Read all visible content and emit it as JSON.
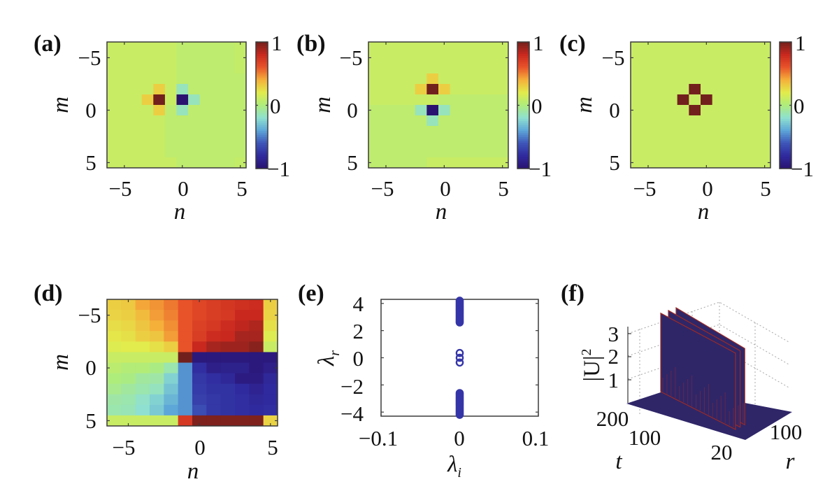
{
  "colors": {
    "colormap_stops": [
      "#2a1370",
      "#2f2a9e",
      "#3e55b8",
      "#5da6d8",
      "#8fe0d0",
      "#aeec7c",
      "#e2ec4c",
      "#f5b03a",
      "#e8532a",
      "#c8281e",
      "#72201d"
    ],
    "marker": "#3535a8",
    "surface": "#2f2668",
    "surface_edge": "#9a2a26"
  },
  "chart_data": [
    {
      "id": "a",
      "panel_label": "(a)",
      "type": "heatmap",
      "xlabel": "n",
      "ylabel": "m",
      "x": [
        -6,
        -5,
        -4,
        -3,
        -2,
        -1,
        0,
        1,
        2,
        3,
        4,
        5
      ],
      "y": [
        -6,
        -5,
        -4,
        -3,
        -2,
        -1,
        0,
        1,
        2,
        3,
        4,
        5
      ],
      "xticks": [
        "−5",
        "0",
        "5"
      ],
      "yticks": [
        "−5",
        "0",
        "5"
      ],
      "xtick_values": [
        -5,
        0,
        5
      ],
      "ytick_values": [
        -5,
        0,
        5
      ],
      "clim": [
        -1,
        1
      ],
      "colorbar_ticks": [
        "1",
        "0",
        "−1"
      ],
      "colorbar_tick_values": [
        1,
        0,
        -1
      ],
      "values": [
        [
          0.1,
          0.1,
          0.1,
          0.1,
          0.1,
          0.1,
          0.06,
          0.06,
          0.06,
          0.06,
          0.06,
          0.08
        ],
        [
          0.1,
          0.1,
          0.1,
          0.1,
          0.1,
          0.1,
          0.06,
          0.06,
          0.06,
          0.06,
          0.06,
          0.08
        ],
        [
          0.1,
          0.1,
          0.1,
          0.1,
          0.1,
          0.1,
          0.06,
          0.06,
          0.06,
          0.06,
          0.06,
          0.08
        ],
        [
          0.1,
          0.1,
          0.1,
          0.1,
          0.1,
          0.1,
          0.06,
          0.06,
          0.06,
          0.06,
          0.06,
          0.06
        ],
        [
          0.1,
          0.1,
          0.1,
          0.1,
          0.3,
          0.1,
          -0.15,
          0.06,
          0.06,
          0.06,
          0.06,
          0.06
        ],
        [
          0.1,
          0.1,
          0.1,
          0.3,
          1.0,
          0.1,
          -1.0,
          -0.15,
          0.06,
          0.06,
          0.06,
          0.06
        ],
        [
          0.1,
          0.1,
          0.1,
          0.1,
          0.3,
          0.06,
          -0.15,
          0.06,
          0.06,
          0.06,
          0.06,
          0.06
        ],
        [
          0.1,
          0.1,
          0.1,
          0.1,
          0.1,
          0.06,
          0.06,
          0.06,
          0.06,
          0.06,
          0.06,
          0.06
        ],
        [
          0.1,
          0.1,
          0.1,
          0.1,
          0.1,
          0.06,
          0.06,
          0.06,
          0.06,
          0.06,
          0.06,
          0.06
        ],
        [
          0.1,
          0.1,
          0.1,
          0.1,
          0.1,
          0.06,
          0.06,
          0.06,
          0.06,
          0.06,
          0.06,
          0.06
        ],
        [
          0.1,
          0.1,
          0.1,
          0.1,
          0.1,
          0.06,
          0.06,
          0.06,
          0.06,
          0.06,
          0.06,
          0.06
        ],
        [
          0.1,
          0.1,
          0.1,
          0.1,
          0.1,
          0.1,
          0.06,
          0.06,
          0.06,
          0.06,
          0.06,
          0.08
        ]
      ]
    },
    {
      "id": "b",
      "panel_label": "(b)",
      "type": "heatmap",
      "xlabel": "n",
      "ylabel": "m",
      "x": [
        -6,
        -5,
        -4,
        -3,
        -2,
        -1,
        0,
        1,
        2,
        3,
        4,
        5
      ],
      "y": [
        -6,
        -5,
        -4,
        -3,
        -2,
        -1,
        0,
        1,
        2,
        3,
        4,
        5
      ],
      "xticks": [
        "−5",
        "0",
        "5"
      ],
      "yticks": [
        "−5",
        "0",
        "5"
      ],
      "xtick_values": [
        -5,
        0,
        5
      ],
      "ytick_values": [
        -5,
        0,
        5
      ],
      "clim": [
        -1,
        1
      ],
      "colorbar_ticks": [
        "1",
        "0",
        "−1"
      ],
      "colorbar_tick_values": [
        1,
        0,
        -1
      ],
      "values": [
        [
          0.1,
          0.1,
          0.1,
          0.1,
          0.1,
          0.1,
          0.1,
          0.1,
          0.1,
          0.1,
          0.1,
          0.1
        ],
        [
          0.1,
          0.1,
          0.1,
          0.1,
          0.1,
          0.1,
          0.1,
          0.1,
          0.1,
          0.1,
          0.1,
          0.1
        ],
        [
          0.1,
          0.1,
          0.1,
          0.1,
          0.1,
          0.1,
          0.1,
          0.1,
          0.1,
          0.1,
          0.1,
          0.1
        ],
        [
          0.1,
          0.1,
          0.1,
          0.1,
          0.1,
          0.3,
          0.1,
          0.1,
          0.1,
          0.1,
          0.1,
          0.1
        ],
        [
          0.1,
          0.1,
          0.1,
          0.1,
          0.3,
          1.0,
          0.3,
          0.1,
          0.1,
          0.1,
          0.1,
          0.1
        ],
        [
          0.1,
          0.1,
          0.1,
          0.1,
          0.1,
          0.1,
          0.06,
          0.06,
          0.06,
          0.06,
          0.06,
          0.06
        ],
        [
          0.06,
          0.06,
          0.06,
          0.06,
          -0.15,
          -1.0,
          -0.15,
          0.06,
          0.06,
          0.06,
          0.06,
          0.06
        ],
        [
          0.06,
          0.06,
          0.06,
          0.06,
          0.06,
          -0.15,
          0.06,
          0.06,
          0.06,
          0.06,
          0.06,
          0.06
        ],
        [
          0.06,
          0.06,
          0.06,
          0.06,
          0.06,
          0.06,
          0.06,
          0.06,
          0.06,
          0.06,
          0.06,
          0.06
        ],
        [
          0.06,
          0.06,
          0.06,
          0.06,
          0.06,
          0.06,
          0.06,
          0.06,
          0.06,
          0.06,
          0.06,
          0.06
        ],
        [
          0.06,
          0.06,
          0.06,
          0.06,
          0.06,
          0.06,
          0.06,
          0.06,
          0.06,
          0.06,
          0.06,
          0.06
        ],
        [
          0.06,
          0.06,
          0.06,
          0.06,
          0.06,
          0.1,
          0.1,
          0.1,
          0.1,
          0.1,
          0.1,
          0.1
        ]
      ]
    },
    {
      "id": "c",
      "panel_label": "(c)",
      "type": "heatmap",
      "xlabel": "n",
      "ylabel": "m",
      "x": [
        -6,
        -5,
        -4,
        -3,
        -2,
        -1,
        0,
        1,
        2,
        3,
        4,
        5
      ],
      "y": [
        -6,
        -5,
        -4,
        -3,
        -2,
        -1,
        0,
        1,
        2,
        3,
        4,
        5
      ],
      "xticks": [
        "−5",
        "0",
        "5"
      ],
      "yticks": [
        "−5",
        "0",
        "5"
      ],
      "xtick_values": [
        -5,
        0,
        5
      ],
      "ytick_values": [
        -5,
        0,
        5
      ],
      "clim": [
        -1,
        1
      ],
      "colorbar_ticks": [
        "1",
        "0",
        "−1"
      ],
      "colorbar_tick_values": [
        1,
        0,
        -1
      ],
      "values": [
        [
          0.1,
          0.1,
          0.1,
          0.1,
          0.1,
          0.1,
          0.1,
          0.1,
          0.1,
          0.1,
          0.1,
          0.1
        ],
        [
          0.1,
          0.1,
          0.1,
          0.1,
          0.1,
          0.1,
          0.1,
          0.1,
          0.1,
          0.1,
          0.1,
          0.1
        ],
        [
          0.1,
          0.1,
          0.1,
          0.1,
          0.1,
          0.1,
          0.1,
          0.1,
          0.1,
          0.1,
          0.1,
          0.1
        ],
        [
          0.1,
          0.1,
          0.1,
          0.1,
          0.1,
          0.1,
          0.1,
          0.1,
          0.1,
          0.1,
          0.1,
          0.1
        ],
        [
          0.1,
          0.1,
          0.1,
          0.1,
          0.1,
          1.0,
          0.1,
          0.1,
          0.1,
          0.1,
          0.1,
          0.1
        ],
        [
          0.1,
          0.1,
          0.1,
          0.1,
          1.0,
          0.1,
          1.0,
          0.1,
          0.1,
          0.1,
          0.1,
          0.1
        ],
        [
          0.1,
          0.1,
          0.1,
          0.1,
          0.1,
          1.0,
          0.1,
          0.1,
          0.1,
          0.1,
          0.1,
          0.1
        ],
        [
          0.1,
          0.1,
          0.1,
          0.1,
          0.1,
          0.1,
          0.1,
          0.1,
          0.1,
          0.1,
          0.1,
          0.1
        ],
        [
          0.1,
          0.1,
          0.1,
          0.1,
          0.1,
          0.1,
          0.1,
          0.1,
          0.1,
          0.1,
          0.1,
          0.1
        ],
        [
          0.1,
          0.1,
          0.1,
          0.1,
          0.1,
          0.1,
          0.1,
          0.1,
          0.1,
          0.1,
          0.1,
          0.1
        ],
        [
          0.1,
          0.1,
          0.1,
          0.1,
          0.1,
          0.1,
          0.1,
          0.1,
          0.1,
          0.1,
          0.1,
          0.1
        ],
        [
          0.1,
          0.1,
          0.1,
          0.1,
          0.1,
          0.1,
          0.1,
          0.1,
          0.1,
          0.1,
          0.1,
          0.1
        ]
      ]
    },
    {
      "id": "d",
      "panel_label": "(d)",
      "type": "heatmap",
      "xlabel": "n",
      "ylabel": "m",
      "x": [
        -6,
        -5,
        -4,
        -3,
        -2,
        -1,
        0,
        1,
        2,
        3,
        4,
        5
      ],
      "y": [
        -6,
        -5,
        -4,
        -3,
        -2,
        -1,
        0,
        1,
        2,
        3,
        4,
        5
      ],
      "xticks": [
        "−5",
        "0",
        "5"
      ],
      "yticks": [
        "−5",
        "0",
        "5"
      ],
      "xtick_values": [
        -5,
        0,
        5
      ],
      "ytick_values": [
        -5,
        0,
        5
      ],
      "clim": [
        -1,
        1
      ],
      "values": [
        [
          0.3,
          0.32,
          0.42,
          0.46,
          0.52,
          0.6,
          0.66,
          0.7,
          0.73,
          0.76,
          0.78,
          0.3
        ],
        [
          0.28,
          0.3,
          0.36,
          0.44,
          0.5,
          0.6,
          0.66,
          0.7,
          0.72,
          0.8,
          0.8,
          0.28
        ],
        [
          0.25,
          0.27,
          0.33,
          0.4,
          0.47,
          0.6,
          0.68,
          0.72,
          0.78,
          0.82,
          0.86,
          0.24
        ],
        [
          0.22,
          0.24,
          0.3,
          0.33,
          0.44,
          0.6,
          0.7,
          0.78,
          0.8,
          0.88,
          0.88,
          0.18
        ],
        [
          0.18,
          0.2,
          0.2,
          0.24,
          0.3,
          0.6,
          0.8,
          0.88,
          0.9,
          0.9,
          0.95,
          0.1
        ],
        [
          0.1,
          0.1,
          0.1,
          0.1,
          0.1,
          1.0,
          -0.95,
          -0.95,
          -0.95,
          -0.95,
          -0.95,
          -0.95
        ],
        [
          0.05,
          0.02,
          0.02,
          -0.02,
          -0.12,
          -0.45,
          -0.78,
          -0.9,
          -0.88,
          -0.88,
          -0.95,
          -0.9
        ],
        [
          0.0,
          -0.02,
          -0.08,
          -0.1,
          -0.25,
          -0.45,
          -0.74,
          -0.78,
          -0.82,
          -0.92,
          -0.92,
          -0.82
        ],
        [
          -0.04,
          -0.08,
          -0.12,
          -0.16,
          -0.3,
          -0.45,
          -0.72,
          -0.76,
          -0.76,
          -0.8,
          -0.86,
          -0.8
        ],
        [
          -0.1,
          -0.12,
          -0.18,
          -0.25,
          -0.35,
          -0.45,
          -0.7,
          -0.74,
          -0.76,
          -0.78,
          -0.82,
          -0.8
        ],
        [
          -0.12,
          -0.14,
          -0.2,
          -0.28,
          -0.4,
          -0.45,
          -0.64,
          -0.74,
          -0.76,
          -0.78,
          -0.8,
          -0.78
        ],
        [
          0.1,
          0.1,
          0.1,
          0.1,
          0.1,
          0.72,
          0.97,
          0.97,
          0.97,
          0.97,
          0.97,
          0.28
        ]
      ]
    },
    {
      "id": "e",
      "panel_label": "(e)",
      "type": "scatter",
      "xlabel": "λ",
      "xlabel_sub": "i",
      "ylabel": "λ",
      "ylabel_sub": "r",
      "xlim": [
        -0.1,
        0.1
      ],
      "ylim": [
        -4.3,
        4.3
      ],
      "xticks": [
        "−0.1",
        "0",
        "0.1"
      ],
      "xtick_values": [
        -0.1,
        0,
        0.1
      ],
      "yticks": [
        "4",
        "2",
        "0",
        "−2",
        "−4"
      ],
      "ytick_values": [
        4,
        2,
        0,
        -2,
        -4
      ],
      "points": [
        {
          "x": 0,
          "y": 4.2
        },
        {
          "x": 0,
          "y": 4.1
        },
        {
          "x": 0,
          "y": 4.0
        },
        {
          "x": 0,
          "y": 3.9
        },
        {
          "x": 0,
          "y": 3.8
        },
        {
          "x": 0,
          "y": 3.7
        },
        {
          "x": 0,
          "y": 3.6
        },
        {
          "x": 0,
          "y": 3.5
        },
        {
          "x": 0,
          "y": 3.4
        },
        {
          "x": 0,
          "y": 3.3
        },
        {
          "x": 0,
          "y": 3.2
        },
        {
          "x": 0,
          "y": 3.1
        },
        {
          "x": 0,
          "y": 3.0
        },
        {
          "x": 0,
          "y": 2.9
        },
        {
          "x": 0,
          "y": 2.8
        },
        {
          "x": 0,
          "y": 2.7
        },
        {
          "x": 0,
          "y": 2.6
        },
        {
          "x": 0,
          "y": 0.35
        },
        {
          "x": 0,
          "y": 0.0
        },
        {
          "x": 0,
          "y": -0.35
        },
        {
          "x": 0,
          "y": -2.6
        },
        {
          "x": 0,
          "y": -2.7
        },
        {
          "x": 0,
          "y": -2.8
        },
        {
          "x": 0,
          "y": -2.9
        },
        {
          "x": 0,
          "y": -3.0
        },
        {
          "x": 0,
          "y": -3.1
        },
        {
          "x": 0,
          "y": -3.2
        },
        {
          "x": 0,
          "y": -3.3
        },
        {
          "x": 0,
          "y": -3.4
        },
        {
          "x": 0,
          "y": -3.5
        },
        {
          "x": 0,
          "y": -3.6
        },
        {
          "x": 0,
          "y": -3.7
        },
        {
          "x": 0,
          "y": -3.8
        },
        {
          "x": 0,
          "y": -3.9
        },
        {
          "x": 0,
          "y": -4.0
        },
        {
          "x": 0,
          "y": -4.1
        },
        {
          "x": 0,
          "y": -4.2
        }
      ]
    },
    {
      "id": "f",
      "panel_label": "(f)",
      "type": "surface3d",
      "xlabel": "r",
      "ylabel": "t",
      "zlabel": "|U|",
      "zlabel_sup": "2",
      "zticks": [
        "3",
        "2",
        "1"
      ],
      "ztick_values": [
        3,
        2,
        1
      ],
      "tticks": [
        "200",
        "100"
      ],
      "ttick_values": [
        200,
        100
      ],
      "rticks": [
        "20",
        "100"
      ],
      "rtick_values": [
        20,
        100
      ],
      "ridges": [
        {
          "r": 40,
          "peak": 3.4
        },
        {
          "r": 44,
          "peak": 3.4
        },
        {
          "r": 48,
          "peak": 3.4
        }
      ]
    }
  ]
}
